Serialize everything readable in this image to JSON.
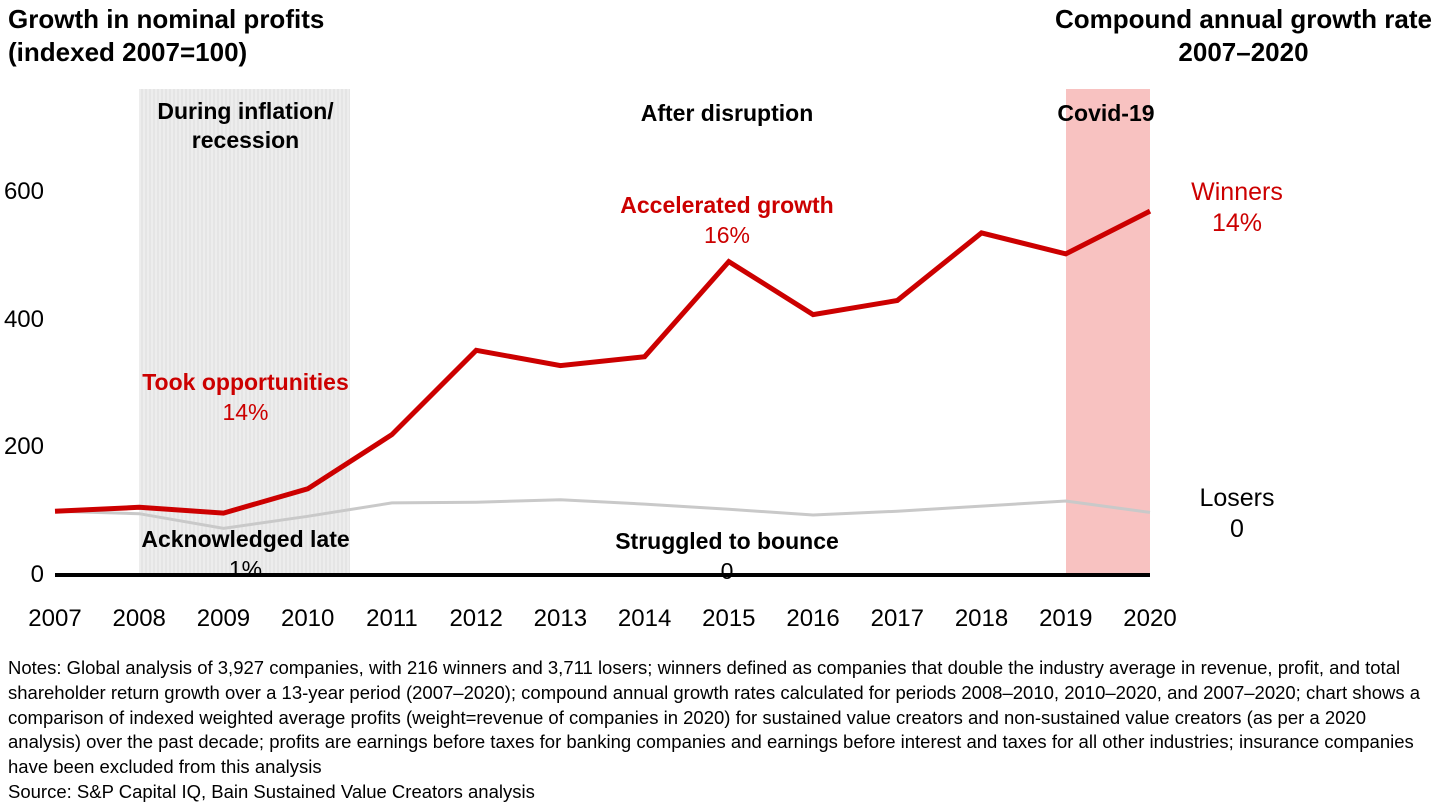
{
  "titles": {
    "left": "Growth in nominal profits\n(indexed 2007=100)",
    "right": "Compound annual growth rate\n2007–2020"
  },
  "palette": {
    "winners_red": "#cc0000",
    "losers_gray": "#c9c9c9",
    "covid_band_pink": "#f8c2c1",
    "recession_band_gray": "#e9e9e9",
    "axis_black": "#000000"
  },
  "phases": [
    {
      "label": "During inflation/\nrecession"
    },
    {
      "label": "After disruption"
    },
    {
      "label": "Covid-19"
    }
  ],
  "annotations": [
    {
      "label": "Took opportunities",
      "value": "14%",
      "color": "#cc0000"
    },
    {
      "label": "Acknowledged late",
      "value": "1%",
      "color": "#000000"
    },
    {
      "label": "Accelerated growth",
      "value": "16%",
      "color": "#cc0000"
    },
    {
      "label": "Struggled to bounce",
      "value": "0",
      "color": "#000000"
    },
    {
      "label": "Winners",
      "value": "14%",
      "color": "#cc0000"
    },
    {
      "label": "Losers",
      "value": "0",
      "color": "#000000"
    }
  ],
  "chart_data": {
    "type": "line",
    "title": "Growth in nominal profits (indexed 2007=100)",
    "xlabel": "",
    "ylabel": "",
    "x": [
      2007,
      2008,
      2009,
      2010,
      2011,
      2012,
      2013,
      2014,
      2015,
      2016,
      2017,
      2018,
      2019,
      2020
    ],
    "series": [
      {
        "name": "Winners",
        "color": "#cc0000",
        "cagr_2007_2020": "14%",
        "values": [
          100,
          106,
          97,
          135,
          220,
          352,
          328,
          342,
          491,
          408,
          430,
          536,
          503,
          570
        ]
      },
      {
        "name": "Losers",
        "color": "#c9c9c9",
        "cagr_2007_2020": "0",
        "values": [
          100,
          96,
          73,
          92,
          113,
          114,
          118,
          111,
          103,
          94,
          100,
          108,
          116,
          98
        ]
      }
    ],
    "yticks": [
      0,
      200,
      400,
      600
    ],
    "ylim": [
      0,
      600
    ],
    "grid": false,
    "legend": "labels at line ends (right side)",
    "bands": [
      {
        "name": "recession-band",
        "from": 2008,
        "to": 2010.5,
        "color": "striped-gray"
      },
      {
        "name": "covid-band",
        "from": 2019,
        "to": 2020,
        "color": "#f8c2c1"
      }
    ]
  },
  "footer": {
    "notes": "Notes: Global analysis of 3,927 companies, with 216 winners and 3,711 losers; winners defined as companies that double the industry average in revenue, profit, and total shareholder return growth over a 13-year period (2007–2020); compound annual growth rates calculated for periods 2008–2010, 2010–2020, and 2007–2020; chart shows a comparison of indexed weighted average profits (weight=revenue of companies in 2020) for sustained value creators and non-sustained value creators (as per a 2020 analysis) over the past decade; profits are earnings before taxes for banking companies and earnings before interest and taxes for all other industries; insurance companies have been excluded from this analysis",
    "source": "Source: S&P Capital IQ, Bain Sustained Value Creators analysis"
  }
}
